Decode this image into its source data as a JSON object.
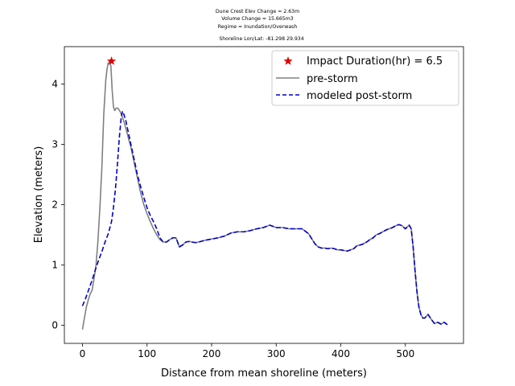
{
  "chart_data": {
    "type": "line",
    "title_lines": [
      "Dune Crest Elev Change = 2.63m",
      "Volume Change = 15.665m3",
      "Regime = Inundation/Overwash",
      "Shoreline Lon/Lat: -81.298 29.934"
    ],
    "xlabel": "Distance from mean shoreline (meters)",
    "ylabel": "Elevation (meters)",
    "xlim": [
      -28,
      590
    ],
    "ylim": [
      -0.3,
      4.62
    ],
    "xticks": [
      0,
      100,
      200,
      300,
      400,
      500
    ],
    "yticks": [
      0,
      1,
      2,
      3,
      4
    ],
    "grid": false,
    "legend_position": "top-right",
    "series": [
      {
        "name": "pre-storm",
        "color": "#808080",
        "style": "solid",
        "x": [
          0,
          3,
          6,
          9,
          12,
          15,
          18,
          21,
          24,
          27,
          30,
          33,
          36,
          38,
          40,
          42,
          44,
          46,
          48,
          50,
          52,
          55,
          58,
          61,
          65,
          70,
          75,
          80,
          85,
          90,
          95,
          100,
          105,
          110,
          115,
          120,
          125,
          130,
          135,
          140,
          145,
          150,
          155,
          160,
          165,
          170,
          175,
          180,
          190,
          200,
          210,
          220,
          230,
          240,
          250,
          260,
          270,
          280,
          290,
          300,
          310,
          320,
          330,
          340,
          350,
          360,
          365,
          370,
          375,
          380,
          385,
          390,
          395,
          400,
          405,
          410,
          415,
          420,
          425,
          430,
          435,
          440,
          445,
          450,
          455,
          460,
          465,
          470,
          475,
          480,
          485,
          490,
          495,
          500,
          503,
          506,
          509,
          512,
          515,
          518,
          521,
          524,
          527,
          530,
          535,
          540,
          545,
          550,
          555,
          560,
          565
        ],
        "y": [
          -0.07,
          0.12,
          0.3,
          0.42,
          0.52,
          0.58,
          0.78,
          1.0,
          1.4,
          1.95,
          2.6,
          3.5,
          4.05,
          4.25,
          4.35,
          4.37,
          4.3,
          3.9,
          3.62,
          3.56,
          3.6,
          3.6,
          3.55,
          3.48,
          3.35,
          3.15,
          2.95,
          2.7,
          2.45,
          2.2,
          2.0,
          1.85,
          1.72,
          1.6,
          1.5,
          1.42,
          1.38,
          1.38,
          1.42,
          1.45,
          1.45,
          1.3,
          1.33,
          1.38,
          1.39,
          1.38,
          1.37,
          1.38,
          1.41,
          1.43,
          1.45,
          1.48,
          1.53,
          1.55,
          1.55,
          1.57,
          1.6,
          1.62,
          1.66,
          1.62,
          1.62,
          1.6,
          1.6,
          1.6,
          1.52,
          1.35,
          1.3,
          1.28,
          1.28,
          1.27,
          1.28,
          1.27,
          1.25,
          1.25,
          1.24,
          1.23,
          1.25,
          1.27,
          1.32,
          1.33,
          1.35,
          1.38,
          1.42,
          1.45,
          1.5,
          1.52,
          1.55,
          1.58,
          1.6,
          1.62,
          1.65,
          1.67,
          1.65,
          1.6,
          1.63,
          1.66,
          1.6,
          1.3,
          0.9,
          0.55,
          0.3,
          0.18,
          0.12,
          0.12,
          0.18,
          0.1,
          0.03,
          0.05,
          0.02,
          0.05,
          0.01
        ]
      },
      {
        "name": "modeled post-storm",
        "color": "#0000cc",
        "style": "dashed",
        "x": [
          0,
          5,
          10,
          15,
          20,
          25,
          30,
          35,
          40,
          45,
          48,
          51,
          54,
          57,
          60,
          62,
          64,
          67,
          70,
          75,
          80,
          85,
          90,
          95,
          100,
          105,
          110,
          115,
          120,
          125,
          130,
          135,
          140,
          145,
          150,
          155,
          160,
          165,
          170,
          175,
          180,
          190,
          200,
          210,
          220,
          230,
          240,
          250,
          260,
          270,
          280,
          290,
          300,
          310,
          320,
          330,
          340,
          350,
          360,
          365,
          370,
          375,
          380,
          385,
          390,
          395,
          400,
          405,
          410,
          415,
          420,
          425,
          430,
          435,
          440,
          445,
          450,
          455,
          460,
          465,
          470,
          475,
          480,
          485,
          490,
          495,
          500,
          503,
          506,
          509,
          512,
          515,
          518,
          521,
          524,
          527,
          530,
          535,
          540,
          545,
          550,
          555,
          560,
          565
        ],
        "y": [
          0.32,
          0.45,
          0.6,
          0.75,
          0.92,
          1.08,
          1.22,
          1.38,
          1.52,
          1.72,
          1.95,
          2.25,
          2.65,
          3.1,
          3.45,
          3.55,
          3.5,
          3.4,
          3.25,
          3.0,
          2.75,
          2.5,
          2.3,
          2.12,
          1.95,
          1.82,
          1.72,
          1.6,
          1.45,
          1.38,
          1.38,
          1.42,
          1.45,
          1.45,
          1.3,
          1.33,
          1.38,
          1.39,
          1.38,
          1.37,
          1.38,
          1.41,
          1.43,
          1.45,
          1.48,
          1.53,
          1.55,
          1.55,
          1.57,
          1.6,
          1.62,
          1.66,
          1.62,
          1.62,
          1.6,
          1.6,
          1.6,
          1.52,
          1.35,
          1.3,
          1.28,
          1.28,
          1.27,
          1.28,
          1.27,
          1.25,
          1.25,
          1.24,
          1.23,
          1.25,
          1.27,
          1.32,
          1.33,
          1.35,
          1.38,
          1.42,
          1.45,
          1.5,
          1.52,
          1.55,
          1.58,
          1.6,
          1.62,
          1.65,
          1.67,
          1.65,
          1.6,
          1.63,
          1.66,
          1.6,
          1.3,
          0.9,
          0.55,
          0.3,
          0.18,
          0.12,
          0.12,
          0.18,
          0.1,
          0.03,
          0.05,
          0.02,
          0.05,
          0.01
        ]
      }
    ],
    "marker": {
      "name": "Impact Duration(hr) = 6.5",
      "shape": "star",
      "color": "#dd0000",
      "x": 45,
      "y": 4.38
    }
  }
}
